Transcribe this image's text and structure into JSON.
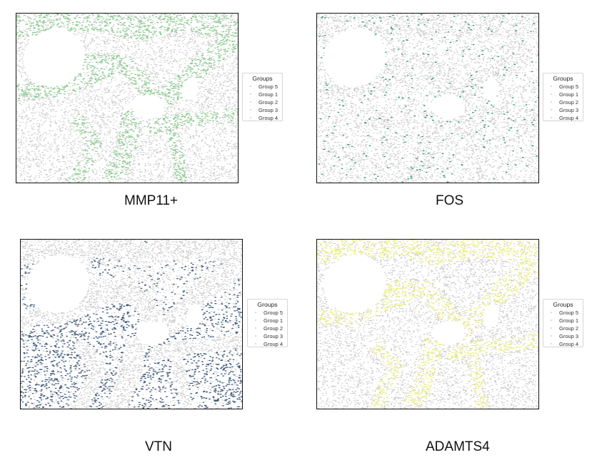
{
  "chart_data": [
    {
      "type": "scatter",
      "title": "MMP11+",
      "legend": {
        "title": "Groups",
        "entries": [
          "Group 5",
          "Group 1",
          "Group 2",
          "Group 3",
          "Group 4"
        ],
        "placement": "outside-right"
      },
      "background_color": "#c8c8c8",
      "highlight_color": "#86cc8a",
      "highlight_region": "stroma",
      "grid": false,
      "axes_visible": false
    },
    {
      "type": "scatter",
      "title": "FOS",
      "legend": {
        "title": "Groups",
        "entries": [
          "Group 5",
          "Group 1",
          "Group 2",
          "Group 3",
          "Group 4"
        ],
        "placement": "outside-right"
      },
      "background_color": "#c8c8c8",
      "highlight_color": "#1d8f72",
      "highlight_region": "sparse-clusters",
      "grid": false,
      "axes_visible": false
    },
    {
      "type": "scatter",
      "title": "VTN",
      "legend": {
        "title": "Groups",
        "entries": [
          "Group 5",
          "Group 1",
          "Group 2",
          "Group 3",
          "Group 4"
        ],
        "placement": "outside-right"
      },
      "background_color": "#c8c8c8",
      "highlight_color": "#3a5577",
      "highlight_region": "parenchyma",
      "grid": false,
      "axes_visible": false
    },
    {
      "type": "scatter",
      "title": "ADAMTS4",
      "legend": {
        "title": "Groups",
        "entries": [
          "Group 5",
          "Group 1",
          "Group 2",
          "Group 3",
          "Group 4"
        ],
        "placement": "outside-right"
      },
      "background_color": "#c8c8c8",
      "highlight_color": "#eef27a",
      "highlight_region": "stroma",
      "grid": false,
      "axes_visible": false
    }
  ]
}
